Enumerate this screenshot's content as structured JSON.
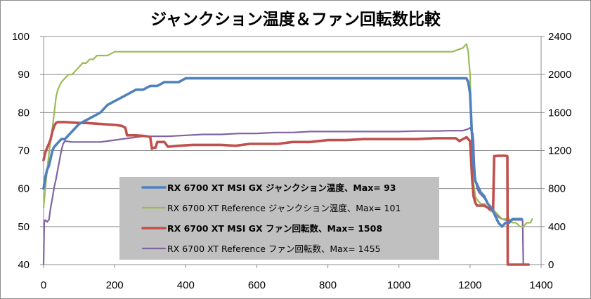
{
  "chart_data": {
    "type": "line",
    "title": "ジャンクション温度＆ファン回転数比較",
    "x_ticks": [
      0,
      200,
      400,
      600,
      800,
      1000,
      1200,
      1400
    ],
    "xlim": [
      0,
      1400
    ],
    "y_left_ticks": [
      40,
      50,
      60,
      70,
      80,
      90,
      100
    ],
    "ylim_left": [
      40,
      100
    ],
    "y_right_ticks": [
      0,
      400,
      800,
      1200,
      1600,
      2000,
      2400
    ],
    "ylim_right": [
      0,
      2400
    ],
    "grid": "horizontal",
    "legend_position": "center-left",
    "series": [
      {
        "name": "RX 6700 XT MSI GX ジャンクション温度、Max= 93",
        "axis": "left",
        "color": "#4f81bd",
        "width": 3.6,
        "bold": true,
        "points": [
          [
            0,
            60
          ],
          [
            5,
            63
          ],
          [
            10,
            65
          ],
          [
            15,
            66
          ],
          [
            20,
            68
          ],
          [
            25,
            70
          ],
          [
            30,
            71
          ],
          [
            40,
            72
          ],
          [
            50,
            73
          ],
          [
            60,
            73
          ],
          [
            70,
            74
          ],
          [
            80,
            75
          ],
          [
            90,
            76
          ],
          [
            100,
            77
          ],
          [
            120,
            78
          ],
          [
            140,
            79
          ],
          [
            160,
            80
          ],
          [
            180,
            82
          ],
          [
            200,
            83
          ],
          [
            220,
            84
          ],
          [
            240,
            85
          ],
          [
            260,
            86
          ],
          [
            280,
            86
          ],
          [
            300,
            87
          ],
          [
            320,
            87
          ],
          [
            340,
            88
          ],
          [
            360,
            88
          ],
          [
            380,
            88
          ],
          [
            400,
            89
          ],
          [
            450,
            89
          ],
          [
            500,
            89
          ],
          [
            550,
            89
          ],
          [
            600,
            89
          ],
          [
            650,
            89
          ],
          [
            700,
            89
          ],
          [
            750,
            89
          ],
          [
            800,
            89
          ],
          [
            850,
            89
          ],
          [
            900,
            89
          ],
          [
            950,
            89
          ],
          [
            1000,
            89
          ],
          [
            1050,
            89
          ],
          [
            1100,
            89
          ],
          [
            1150,
            89
          ],
          [
            1190,
            89
          ],
          [
            1195,
            88
          ],
          [
            1200,
            85
          ],
          [
            1205,
            75
          ],
          [
            1210,
            66
          ],
          [
            1215,
            62
          ],
          [
            1220,
            61
          ],
          [
            1230,
            59
          ],
          [
            1240,
            58
          ],
          [
            1250,
            56
          ],
          [
            1260,
            55
          ],
          [
            1270,
            53
          ],
          [
            1280,
            51
          ],
          [
            1290,
            50
          ],
          [
            1300,
            51
          ],
          [
            1310,
            51
          ],
          [
            1320,
            52
          ],
          [
            1330,
            52
          ],
          [
            1340,
            52
          ],
          [
            1345,
            52
          ]
        ]
      },
      {
        "name": "RX 6700 XT Reference ジャンクション温度、Max= 101",
        "axis": "left",
        "color": "#9bbb59",
        "width": 2.2,
        "bold": false,
        "points": [
          [
            0,
            55
          ],
          [
            5,
            60
          ],
          [
            10,
            65
          ],
          [
            15,
            69
          ],
          [
            20,
            73
          ],
          [
            25,
            76
          ],
          [
            30,
            80
          ],
          [
            35,
            84
          ],
          [
            40,
            86
          ],
          [
            50,
            88
          ],
          [
            60,
            89
          ],
          [
            70,
            90
          ],
          [
            80,
            90
          ],
          [
            90,
            91
          ],
          [
            100,
            92
          ],
          [
            110,
            93
          ],
          [
            120,
            93
          ],
          [
            130,
            94
          ],
          [
            140,
            94
          ],
          [
            150,
            95
          ],
          [
            160,
            95
          ],
          [
            180,
            95
          ],
          [
            200,
            96
          ],
          [
            220,
            96
          ],
          [
            240,
            96
          ],
          [
            260,
            96
          ],
          [
            300,
            96
          ],
          [
            350,
            96
          ],
          [
            400,
            96
          ],
          [
            450,
            96
          ],
          [
            500,
            96
          ],
          [
            550,
            96
          ],
          [
            600,
            96
          ],
          [
            650,
            96
          ],
          [
            700,
            96
          ],
          [
            750,
            96
          ],
          [
            800,
            96
          ],
          [
            850,
            96
          ],
          [
            900,
            96
          ],
          [
            950,
            96
          ],
          [
            1000,
            96
          ],
          [
            1050,
            96
          ],
          [
            1100,
            96
          ],
          [
            1150,
            96
          ],
          [
            1180,
            97
          ],
          [
            1190,
            98
          ],
          [
            1195,
            96
          ],
          [
            1200,
            90
          ],
          [
            1203,
            80
          ],
          [
            1206,
            70
          ],
          [
            1209,
            62
          ],
          [
            1215,
            58
          ],
          [
            1220,
            57
          ],
          [
            1230,
            56
          ],
          [
            1240,
            56
          ],
          [
            1250,
            55
          ],
          [
            1260,
            54
          ],
          [
            1270,
            54
          ],
          [
            1280,
            53
          ],
          [
            1290,
            52
          ],
          [
            1300,
            52
          ],
          [
            1310,
            52
          ],
          [
            1320,
            51
          ],
          [
            1330,
            51
          ],
          [
            1340,
            50
          ],
          [
            1350,
            50
          ],
          [
            1360,
            51
          ],
          [
            1370,
            51
          ],
          [
            1375,
            52
          ]
        ]
      },
      {
        "name": "RX 6700 XT MSI GX ファン回転数、Max= 1508",
        "axis": "right",
        "color": "#c0504d",
        "width": 3.6,
        "bold": true,
        "points": [
          [
            0,
            1100
          ],
          [
            5,
            1180
          ],
          [
            10,
            1230
          ],
          [
            15,
            1270
          ],
          [
            20,
            1320
          ],
          [
            25,
            1400
          ],
          [
            30,
            1460
          ],
          [
            35,
            1490
          ],
          [
            40,
            1500
          ],
          [
            60,
            1500
          ],
          [
            80,
            1495
          ],
          [
            100,
            1490
          ],
          [
            120,
            1490
          ],
          [
            140,
            1485
          ],
          [
            160,
            1480
          ],
          [
            180,
            1475
          ],
          [
            200,
            1470
          ],
          [
            220,
            1460
          ],
          [
            230,
            1440
          ],
          [
            235,
            1360
          ],
          [
            260,
            1360
          ],
          [
            280,
            1355
          ],
          [
            300,
            1345
          ],
          [
            305,
            1220
          ],
          [
            310,
            1230
          ],
          [
            315,
            1230
          ],
          [
            320,
            1290
          ],
          [
            340,
            1290
          ],
          [
            350,
            1240
          ],
          [
            380,
            1250
          ],
          [
            420,
            1260
          ],
          [
            500,
            1260
          ],
          [
            540,
            1250
          ],
          [
            580,
            1270
          ],
          [
            620,
            1270
          ],
          [
            660,
            1270
          ],
          [
            700,
            1290
          ],
          [
            750,
            1290
          ],
          [
            800,
            1310
          ],
          [
            850,
            1310
          ],
          [
            900,
            1320
          ],
          [
            950,
            1320
          ],
          [
            1000,
            1320
          ],
          [
            1050,
            1320
          ],
          [
            1100,
            1330
          ],
          [
            1150,
            1330
          ],
          [
            1160,
            1330
          ],
          [
            1170,
            1300
          ],
          [
            1180,
            1320
          ],
          [
            1190,
            1340
          ],
          [
            1195,
            1320
          ],
          [
            1200,
            1300
          ],
          [
            1203,
            1100
          ],
          [
            1206,
            900
          ],
          [
            1210,
            720
          ],
          [
            1215,
            650
          ],
          [
            1220,
            620
          ],
          [
            1230,
            620
          ],
          [
            1240,
            620
          ],
          [
            1250,
            600
          ],
          [
            1255,
            580
          ],
          [
            1260,
            580
          ],
          [
            1265,
            580
          ],
          [
            1268,
            1140
          ],
          [
            1280,
            1145
          ],
          [
            1290,
            1145
          ],
          [
            1300,
            1145
          ],
          [
            1305,
            1140
          ],
          [
            1306,
            0
          ],
          [
            1350,
            0
          ],
          [
            1360,
            0
          ],
          [
            1365,
            0
          ]
        ]
      },
      {
        "name": "RX 6700 XT Reference ファン回転数、Max= 1455",
        "axis": "right",
        "color": "#8064a2",
        "width": 2.2,
        "bold": false,
        "points": [
          [
            0,
            0
          ],
          [
            2,
            450
          ],
          [
            4,
            470
          ],
          [
            6,
            460
          ],
          [
            8,
            460
          ],
          [
            10,
            450
          ],
          [
            12,
            460
          ],
          [
            15,
            470
          ],
          [
            20,
            600
          ],
          [
            25,
            700
          ],
          [
            30,
            820
          ],
          [
            35,
            900
          ],
          [
            40,
            1000
          ],
          [
            45,
            1100
          ],
          [
            50,
            1200
          ],
          [
            55,
            1270
          ],
          [
            60,
            1300
          ],
          [
            80,
            1290
          ],
          [
            100,
            1290
          ],
          [
            120,
            1290
          ],
          [
            140,
            1290
          ],
          [
            160,
            1290
          ],
          [
            180,
            1300
          ],
          [
            200,
            1310
          ],
          [
            220,
            1320
          ],
          [
            240,
            1330
          ],
          [
            260,
            1340
          ],
          [
            280,
            1350
          ],
          [
            300,
            1350
          ],
          [
            350,
            1350
          ],
          [
            400,
            1360
          ],
          [
            450,
            1370
          ],
          [
            500,
            1370
          ],
          [
            550,
            1380
          ],
          [
            600,
            1380
          ],
          [
            650,
            1390
          ],
          [
            700,
            1390
          ],
          [
            750,
            1400
          ],
          [
            800,
            1400
          ],
          [
            850,
            1400
          ],
          [
            900,
            1400
          ],
          [
            950,
            1400
          ],
          [
            1000,
            1400
          ],
          [
            1050,
            1405
          ],
          [
            1100,
            1405
          ],
          [
            1150,
            1410
          ],
          [
            1180,
            1410
          ],
          [
            1190,
            1420
          ],
          [
            1196,
            1430
          ],
          [
            1200,
            1440
          ],
          [
            1205,
            1400
          ],
          [
            1208,
            1380
          ],
          [
            1210,
            1300
          ],
          [
            1212,
            1100
          ],
          [
            1215,
            900
          ],
          [
            1220,
            800
          ],
          [
            1225,
            760
          ],
          [
            1230,
            740
          ],
          [
            1240,
            700
          ],
          [
            1250,
            640
          ],
          [
            1260,
            580
          ],
          [
            1270,
            560
          ],
          [
            1280,
            500
          ],
          [
            1290,
            480
          ],
          [
            1300,
            470
          ],
          [
            1320,
            470
          ],
          [
            1340,
            470
          ],
          [
            1345,
            470
          ],
          [
            1348,
            470
          ],
          [
            1350,
            0
          ],
          [
            1355,
            0
          ],
          [
            1360,
            0
          ]
        ]
      }
    ]
  }
}
